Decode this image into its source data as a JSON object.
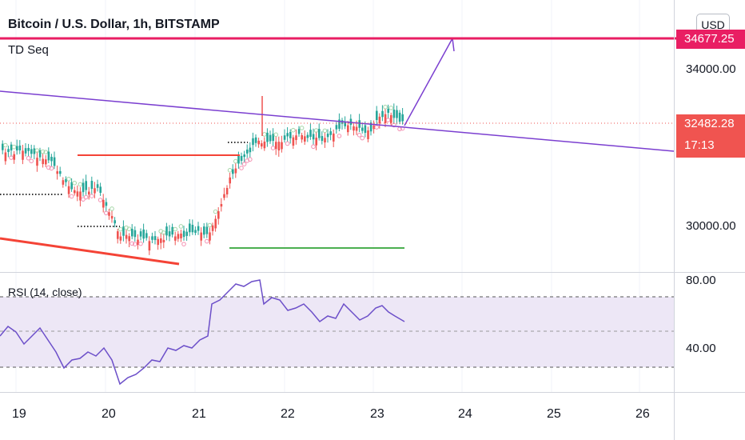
{
  "header": {
    "title": "Bitcoin / U.S. Dollar, 1h, BITSTAMP",
    "indicator": "TD Seq",
    "currency_button": "USD"
  },
  "price_axis": {
    "labels": [
      "34000.00",
      "30000.00"
    ],
    "target_price": "34677.25",
    "last_price": "32482.28",
    "countdown": "17:13"
  },
  "rsi": {
    "label": "RSI (14, close)",
    "axis_labels": [
      "80.00",
      "40.00"
    ]
  },
  "time_axis": {
    "labels": [
      "19",
      "20",
      "21",
      "22",
      "23",
      "24",
      "25",
      "26"
    ]
  },
  "colors": {
    "up": "#26a69a",
    "down": "#ef5350",
    "target_line": "#e91e63",
    "trendline": "#7b3fd0",
    "rsi_line": "#6c4fc9",
    "rsi_band": "#ede7f6",
    "countdown_bg": "#f05450",
    "support_line": "#4caf50",
    "resistance_line": "#f44336"
  }
}
